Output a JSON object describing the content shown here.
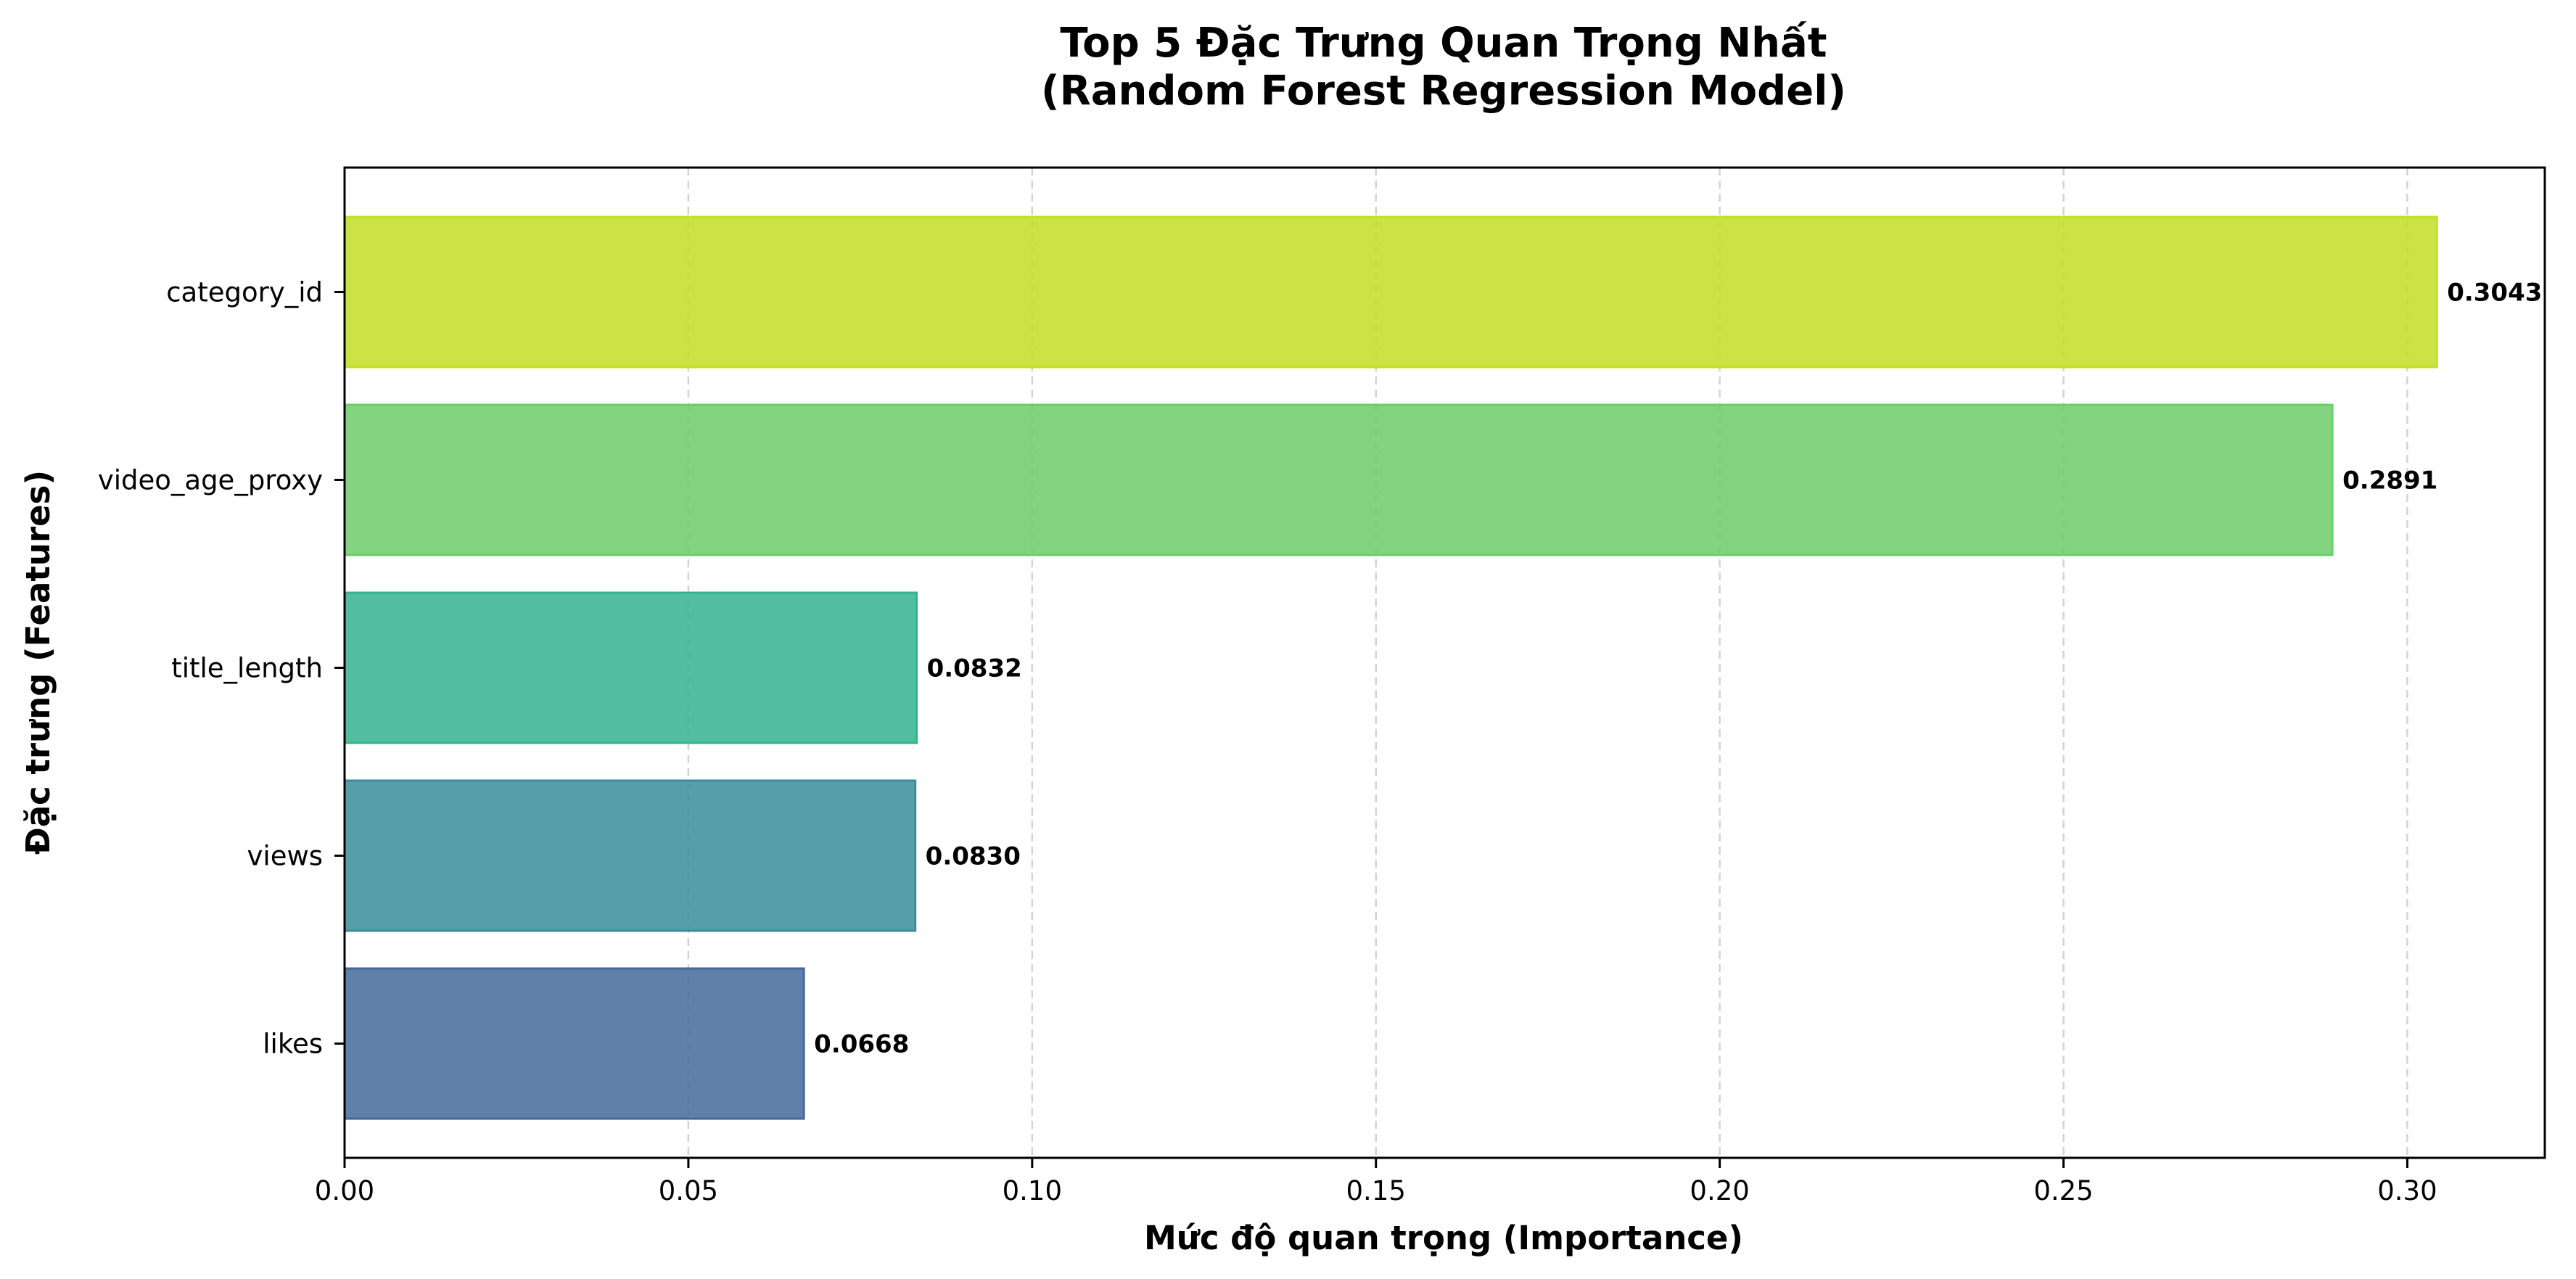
{
  "chart_data": {
    "type": "bar",
    "orientation": "horizontal",
    "title_line1": "Top 5 Đặc Trưng Quan Trọng Nhất",
    "title_line2": "(Random Forest Regression Model)",
    "xlabel": "Mức độ quan trọng (Importance)",
    "ylabel": "Đặc trưng (Features)",
    "xlim": [
      0,
      0.32
    ],
    "xticks": [
      "0.00",
      "0.05",
      "0.10",
      "0.15",
      "0.20",
      "0.25",
      "0.30"
    ],
    "xtick_values": [
      0,
      0.05,
      0.1,
      0.15,
      0.2,
      0.25,
      0.3
    ],
    "grid": "x-dashed",
    "categories": [
      "category_id",
      "video_age_proxy",
      "title_length",
      "views",
      "likes"
    ],
    "values": [
      0.3043,
      0.2891,
      0.0832,
      0.083,
      0.0668
    ],
    "value_labels": [
      "0.3043",
      "0.2891",
      "0.0832",
      "0.0830",
      "0.0668"
    ],
    "colors": [
      "#c2df23",
      "#6ccd6b",
      "#35b28f",
      "#3a8d99",
      "#44699a"
    ]
  }
}
